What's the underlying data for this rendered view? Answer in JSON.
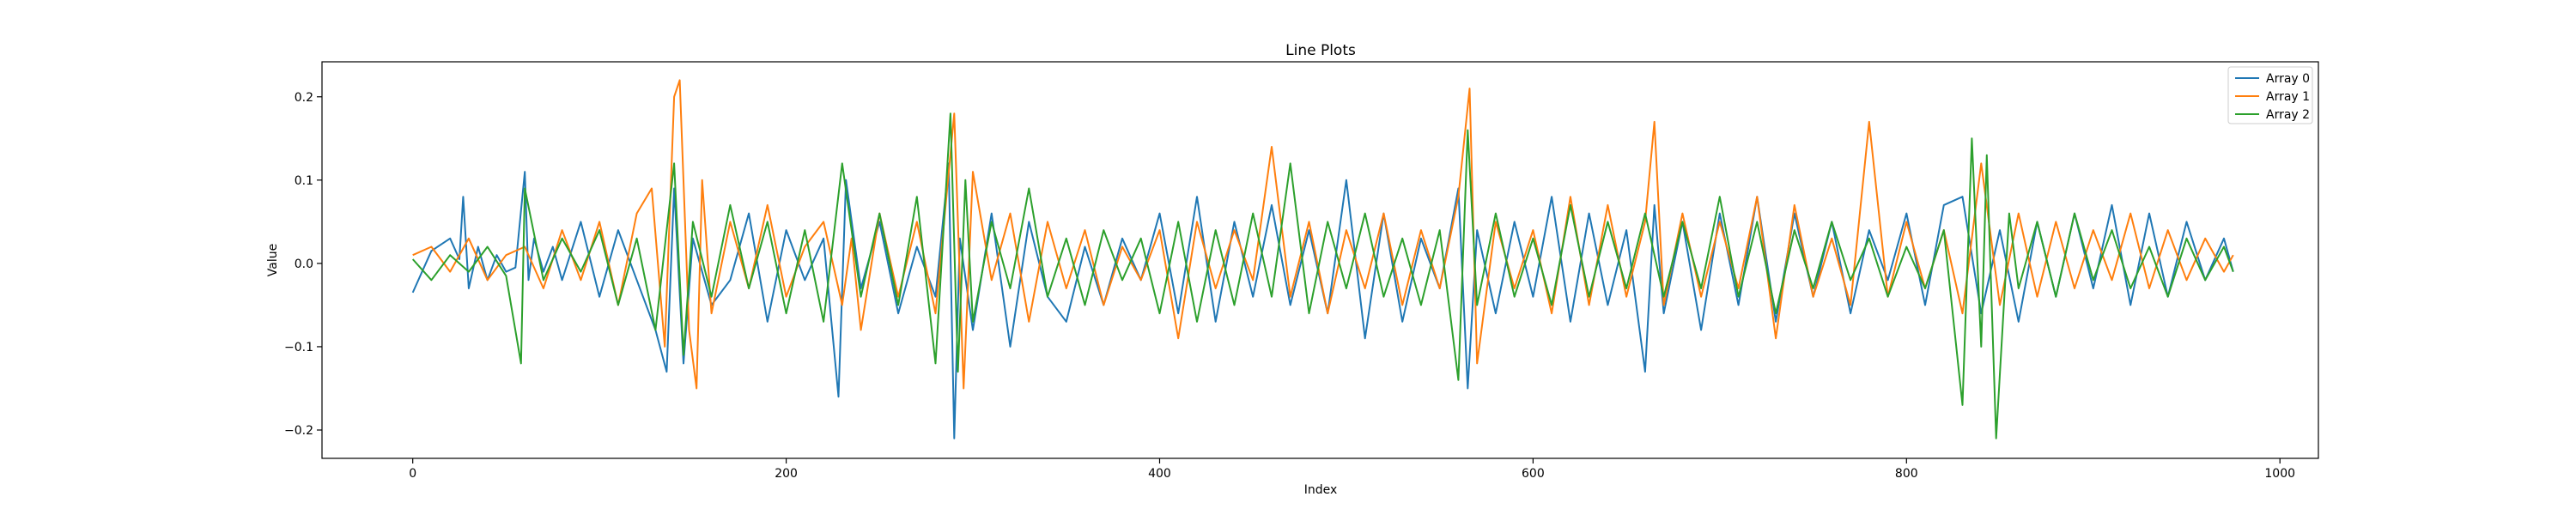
{
  "chart_data": {
    "type": "line",
    "title": "Line Plots",
    "xlabel": "Index",
    "ylabel": "Value",
    "xlim": [
      -48.6,
      1020.6
    ],
    "ylim": [
      -0.234,
      0.242
    ],
    "xticks": [
      0,
      200,
      400,
      600,
      800,
      1000
    ],
    "yticks": [
      -0.2,
      -0.1,
      0.0,
      0.1,
      0.2
    ],
    "ytick_labels": [
      "−0.2",
      "−0.1",
      "0.0",
      "0.1",
      "0.2"
    ],
    "legend_position": "upper-right",
    "grid": false,
    "series": [
      {
        "name": "Array 0",
        "color": "#1f77b4",
        "x": [
          0,
          10,
          20,
          25,
          27,
          30,
          35,
          40,
          45,
          50,
          55,
          60,
          62,
          65,
          70,
          75,
          80,
          90,
          100,
          110,
          120,
          130,
          136,
          140,
          145,
          150,
          160,
          170,
          180,
          190,
          200,
          210,
          220,
          228,
          232,
          240,
          250,
          260,
          270,
          280,
          287,
          290,
          293,
          300,
          310,
          320,
          330,
          340,
          350,
          360,
          370,
          380,
          390,
          400,
          410,
          420,
          430,
          440,
          450,
          460,
          470,
          480,
          490,
          500,
          510,
          520,
          530,
          540,
          550,
          560,
          565,
          570,
          580,
          590,
          600,
          610,
          620,
          630,
          640,
          650,
          660,
          665,
          670,
          680,
          690,
          700,
          710,
          720,
          730,
          740,
          750,
          760,
          770,
          780,
          790,
          800,
          810,
          820,
          830,
          840,
          850,
          860,
          870,
          880,
          890,
          900,
          910,
          920,
          930,
          940,
          950,
          960,
          970,
          975
        ],
        "y": [
          -0.035,
          0.015,
          0.03,
          0.005,
          0.08,
          -0.03,
          0.02,
          -0.02,
          0.01,
          -0.01,
          -0.005,
          0.11,
          -0.02,
          0.03,
          -0.01,
          0.02,
          -0.02,
          0.05,
          -0.04,
          0.04,
          -0.02,
          -0.08,
          -0.13,
          0.09,
          -0.12,
          0.03,
          -0.05,
          -0.02,
          0.06,
          -0.07,
          0.04,
          -0.02,
          0.03,
          -0.16,
          0.1,
          -0.03,
          0.05,
          -0.06,
          0.02,
          -0.04,
          0.12,
          -0.21,
          0.03,
          -0.08,
          0.06,
          -0.1,
          0.05,
          -0.04,
          -0.07,
          0.02,
          -0.05,
          0.03,
          -0.02,
          0.06,
          -0.06,
          0.08,
          -0.07,
          0.05,
          -0.04,
          0.07,
          -0.05,
          0.04,
          -0.06,
          0.1,
          -0.09,
          0.06,
          -0.07,
          0.03,
          -0.03,
          0.09,
          -0.15,
          0.04,
          -0.06,
          0.05,
          -0.04,
          0.08,
          -0.07,
          0.06,
          -0.05,
          0.04,
          -0.13,
          0.07,
          -0.06,
          0.05,
          -0.08,
          0.06,
          -0.05,
          0.08,
          -0.07,
          0.06,
          -0.04,
          0.05,
          -0.06,
          0.04,
          -0.02,
          0.06,
          -0.05,
          0.07,
          0.08,
          -0.06,
          0.04,
          -0.07,
          0.05,
          -0.04,
          0.06,
          -0.03,
          0.07,
          -0.05,
          0.06,
          -0.04,
          0.05,
          -0.02,
          0.03,
          -0.01
        ]
      },
      {
        "name": "Array 1",
        "color": "#ff7f0e",
        "x": [
          0,
          10,
          20,
          30,
          40,
          50,
          60,
          70,
          80,
          90,
          100,
          110,
          120,
          128,
          135,
          140,
          143,
          148,
          152,
          155,
          160,
          170,
          180,
          190,
          200,
          210,
          220,
          230,
          235,
          240,
          250,
          260,
          270,
          280,
          290,
          295,
          300,
          310,
          320,
          330,
          340,
          350,
          360,
          370,
          380,
          390,
          400,
          410,
          420,
          430,
          440,
          450,
          460,
          470,
          480,
          490,
          500,
          510,
          520,
          530,
          540,
          550,
          560,
          566,
          570,
          580,
          590,
          600,
          610,
          620,
          630,
          640,
          650,
          660,
          665,
          670,
          680,
          690,
          700,
          710,
          720,
          730,
          740,
          750,
          760,
          770,
          780,
          790,
          800,
          810,
          820,
          830,
          840,
          850,
          860,
          870,
          880,
          890,
          900,
          910,
          920,
          930,
          940,
          950,
          960,
          970,
          975
        ],
        "y": [
          0.01,
          0.02,
          -0.01,
          0.03,
          -0.02,
          0.01,
          0.02,
          -0.03,
          0.04,
          -0.02,
          0.05,
          -0.05,
          0.06,
          0.09,
          -0.1,
          0.2,
          0.22,
          -0.08,
          -0.15,
          0.1,
          -0.06,
          0.05,
          -0.03,
          0.07,
          -0.04,
          0.02,
          0.05,
          -0.05,
          0.03,
          -0.08,
          0.06,
          -0.04,
          0.05,
          -0.06,
          0.18,
          -0.15,
          0.11,
          -0.02,
          0.06,
          -0.07,
          0.05,
          -0.03,
          0.04,
          -0.05,
          0.02,
          -0.02,
          0.04,
          -0.09,
          0.05,
          -0.03,
          0.04,
          -0.02,
          0.14,
          -0.04,
          0.05,
          -0.06,
          0.04,
          -0.03,
          0.06,
          -0.05,
          0.04,
          -0.03,
          0.08,
          0.21,
          -0.12,
          0.05,
          -0.03,
          0.04,
          -0.06,
          0.08,
          -0.05,
          0.07,
          -0.04,
          0.05,
          0.17,
          -0.05,
          0.06,
          -0.04,
          0.05,
          -0.03,
          0.08,
          -0.09,
          0.07,
          -0.04,
          0.03,
          -0.05,
          0.17,
          -0.04,
          0.05,
          -0.03,
          0.04,
          -0.06,
          0.12,
          -0.05,
          0.06,
          -0.04,
          0.05,
          -0.03,
          0.04,
          -0.02,
          0.06,
          -0.03,
          0.04,
          -0.02,
          0.03,
          -0.01,
          0.01
        ]
      },
      {
        "name": "Array 2",
        "color": "#2ca02c",
        "x": [
          0,
          10,
          20,
          30,
          40,
          50,
          58,
          60,
          70,
          80,
          90,
          100,
          110,
          120,
          130,
          140,
          145,
          150,
          160,
          170,
          180,
          190,
          200,
          210,
          220,
          230,
          240,
          250,
          260,
          270,
          280,
          288,
          292,
          296,
          300,
          310,
          320,
          330,
          340,
          350,
          360,
          370,
          380,
          390,
          400,
          410,
          420,
          430,
          440,
          450,
          460,
          470,
          480,
          490,
          500,
          510,
          520,
          530,
          540,
          550,
          560,
          565,
          570,
          580,
          590,
          600,
          610,
          620,
          630,
          640,
          650,
          660,
          670,
          680,
          690,
          700,
          710,
          720,
          730,
          740,
          750,
          760,
          770,
          780,
          790,
          800,
          810,
          820,
          830,
          835,
          840,
          843,
          848,
          855,
          860,
          870,
          880,
          890,
          900,
          910,
          920,
          930,
          940,
          950,
          960,
          970,
          975
        ],
        "y": [
          0.005,
          -0.02,
          0.01,
          -0.01,
          0.02,
          -0.015,
          -0.12,
          0.09,
          -0.02,
          0.03,
          -0.01,
          0.04,
          -0.05,
          0.03,
          -0.08,
          0.12,
          -0.11,
          0.05,
          -0.04,
          0.07,
          -0.03,
          0.05,
          -0.06,
          0.04,
          -0.07,
          0.12,
          -0.04,
          0.06,
          -0.05,
          0.08,
          -0.12,
          0.18,
          -0.13,
          0.1,
          -0.07,
          0.05,
          -0.03,
          0.09,
          -0.04,
          0.03,
          -0.05,
          0.04,
          -0.02,
          0.03,
          -0.06,
          0.05,
          -0.07,
          0.04,
          -0.05,
          0.06,
          -0.04,
          0.12,
          -0.06,
          0.05,
          -0.03,
          0.06,
          -0.04,
          0.03,
          -0.05,
          0.04,
          -0.14,
          0.16,
          -0.05,
          0.06,
          -0.04,
          0.03,
          -0.05,
          0.07,
          -0.04,
          0.05,
          -0.03,
          0.06,
          -0.04,
          0.05,
          -0.03,
          0.08,
          -0.04,
          0.05,
          -0.06,
          0.04,
          -0.03,
          0.05,
          -0.02,
          0.03,
          -0.04,
          0.02,
          -0.03,
          0.04,
          -0.17,
          0.15,
          -0.1,
          0.13,
          -0.21,
          0.06,
          -0.03,
          0.05,
          -0.04,
          0.06,
          -0.02,
          0.04,
          -0.03,
          0.02,
          -0.04,
          0.03,
          -0.02,
          0.02,
          -0.01
        ]
      }
    ]
  }
}
